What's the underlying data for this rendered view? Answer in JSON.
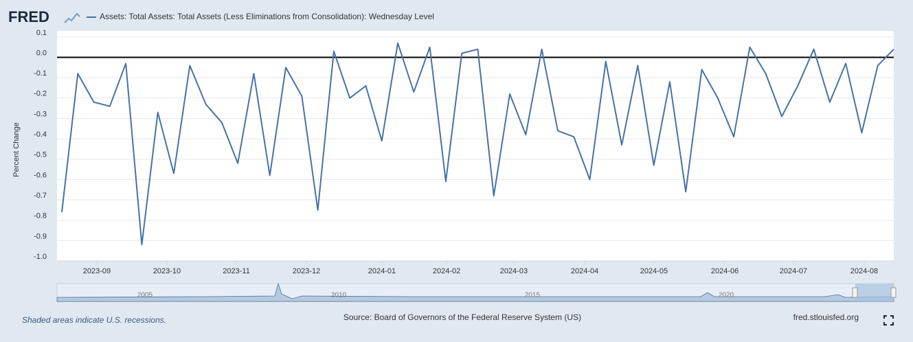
{
  "logo": "FRED",
  "chart_data": {
    "type": "line",
    "series": [
      {
        "name": "Assets: Total Assets: Total Assets (Less Eliminations from Consolidation): Wednesday Level",
        "color": "#4572a7",
        "values": [
          -0.76,
          -0.08,
          -0.22,
          -0.24,
          -0.03,
          -0.92,
          -0.27,
          -0.57,
          -0.04,
          -0.23,
          -0.32,
          -0.52,
          -0.08,
          -0.58,
          -0.05,
          -0.19,
          -0.75,
          0.03,
          -0.2,
          -0.14,
          -0.41,
          0.07,
          -0.17,
          0.05,
          -0.61,
          0.02,
          0.04,
          -0.68,
          -0.18,
          -0.38,
          0.04,
          -0.36,
          -0.39,
          -0.6,
          -0.02,
          -0.43,
          -0.04,
          -0.53,
          -0.12,
          -0.66,
          -0.06,
          -0.2,
          -0.39,
          0.05,
          -0.08,
          -0.29,
          -0.14,
          0.04,
          -0.22,
          -0.03,
          -0.37,
          -0.04,
          0.04
        ]
      }
    ],
    "y_label": "Percent Change",
    "ylim": [
      -1.0,
      0.13
    ],
    "yticks": [
      {
        "value": 0.1,
        "label": "0.1"
      },
      {
        "value": 0.0,
        "label": "0.0"
      },
      {
        "value": -0.1,
        "label": "-0.1"
      },
      {
        "value": -0.2,
        "label": "-0.2"
      },
      {
        "value": -0.3,
        "label": "-0.3"
      },
      {
        "value": -0.4,
        "label": "-0.4"
      },
      {
        "value": -0.5,
        "label": "-0.5"
      },
      {
        "value": -0.6,
        "label": "-0.6"
      },
      {
        "value": -0.7,
        "label": "-0.7"
      },
      {
        "value": -0.8,
        "label": "-0.8"
      },
      {
        "value": -0.9,
        "label": "-0.9"
      },
      {
        "value": -1.0,
        "label": "-1.0"
      }
    ],
    "xlim": [
      -0.3,
      52
    ],
    "xticks": [
      {
        "value": 2.19,
        "label": "2023-09"
      },
      {
        "value": 6.57,
        "label": "2023-10"
      },
      {
        "value": 10.91,
        "label": "2023-11"
      },
      {
        "value": 15.29,
        "label": "2023-12"
      },
      {
        "value": 20.01,
        "label": "2024-01"
      },
      {
        "value": 24.05,
        "label": "2024-02"
      },
      {
        "value": 28.25,
        "label": "2024-03"
      },
      {
        "value": 32.68,
        "label": "2024-04"
      },
      {
        "value": 37.01,
        "label": "2024-05"
      },
      {
        "value": 41.44,
        "label": "2024-06"
      },
      {
        "value": 45.73,
        "label": "2024-07"
      },
      {
        "value": 50.15,
        "label": "2024-08"
      }
    ],
    "grid": true,
    "zero_line": 0.0,
    "navigator_labels": [
      "2005",
      "2010",
      "2015",
      "2020"
    ]
  },
  "footer": {
    "recessions": "Shaded areas indicate U.S. recessions.",
    "source": "Source: Board of Governors of the Federal Reserve System (US)",
    "site": "fred.stlouisfed.org"
  }
}
